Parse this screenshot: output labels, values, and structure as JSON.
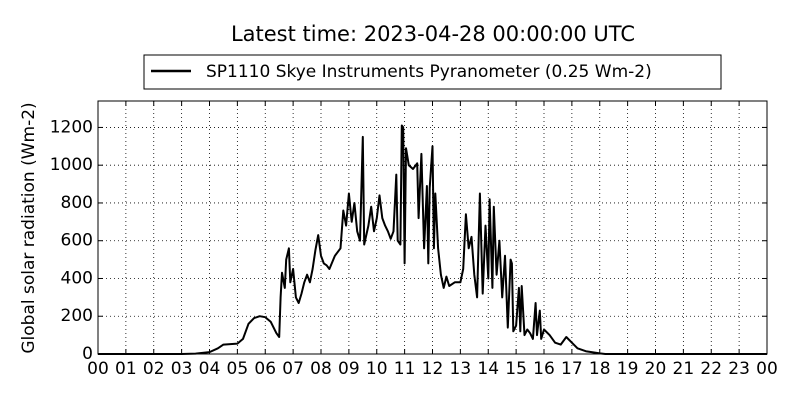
{
  "chart_data": {
    "type": "line",
    "title": "Latest time: 2023-04-28 00:00:00 UTC",
    "y_label": "Global solar radiation (Wm-2)",
    "x": [
      0,
      3,
      3.5,
      4,
      4.3,
      4.5,
      5,
      5.2,
      5.4,
      5.6,
      5.8,
      6.0,
      6.2,
      6.4,
      6.5,
      6.55,
      6.6,
      6.7,
      6.75,
      6.85,
      6.9,
      7.0,
      7.1,
      7.2,
      7.3,
      7.4,
      7.5,
      7.6,
      7.7,
      7.8,
      7.9,
      8.0,
      8.1,
      8.2,
      8.3,
      8.5,
      8.7,
      8.8,
      8.9,
      9.0,
      9.1,
      9.2,
      9.3,
      9.4,
      9.5,
      9.55,
      9.7,
      9.8,
      9.9,
      10.0,
      10.1,
      10.2,
      10.3,
      10.4,
      10.5,
      10.6,
      10.7,
      10.75,
      10.85,
      10.9,
      10.95,
      11.0,
      11.05,
      11.15,
      11.3,
      11.45,
      11.5,
      11.6,
      11.7,
      11.8,
      11.85,
      11.9,
      12.0,
      12.05,
      12.1,
      12.2,
      12.3,
      12.4,
      12.5,
      12.6,
      12.8,
      13.0,
      13.1,
      13.2,
      13.3,
      13.4,
      13.5,
      13.6,
      13.7,
      13.8,
      13.9,
      14.0,
      14.05,
      14.15,
      14.2,
      14.3,
      14.4,
      14.5,
      14.6,
      14.7,
      14.8,
      14.85,
      14.9,
      15.0,
      15.1,
      15.15,
      15.2,
      15.3,
      15.4,
      15.5,
      15.6,
      15.7,
      15.75,
      15.85,
      15.9,
      16.0,
      16.2,
      16.4,
      16.6,
      16.8,
      17.0,
      17.2,
      17.5,
      18.0,
      18.2,
      24
    ],
    "series": [
      {
        "name": "SP1110 Skye Instruments Pyranometer (0.25 Wm-2)",
        "color": "#000000",
        "values": [
          0,
          0,
          2,
          10,
          30,
          50,
          55,
          80,
          160,
          190,
          200,
          195,
          170,
          110,
          90,
          300,
          430,
          350,
          500,
          560,
          380,
          450,
          300,
          270,
          320,
          380,
          420,
          380,
          450,
          550,
          630,
          520,
          480,
          470,
          450,
          520,
          560,
          760,
          680,
          850,
          700,
          800,
          650,
          600,
          1150,
          580,
          680,
          780,
          650,
          720,
          840,
          720,
          680,
          650,
          610,
          650,
          950,
          600,
          580,
          1210,
          1200,
          480,
          1090,
          1000,
          980,
          1010,
          720,
          1060,
          560,
          890,
          480,
          880,
          1100,
          560,
          850,
          560,
          420,
          350,
          410,
          360,
          380,
          380,
          450,
          740,
          560,
          620,
          420,
          300,
          850,
          320,
          680,
          400,
          820,
          350,
          780,
          420,
          600,
          300,
          520,
          140,
          500,
          480,
          120,
          150,
          350,
          120,
          360,
          100,
          130,
          110,
          80,
          270,
          100,
          230,
          80,
          130,
          100,
          60,
          50,
          90,
          60,
          30,
          15,
          3,
          0,
          0
        ]
      }
    ],
    "xlim": [
      0,
      24
    ],
    "xticks": [
      {
        "value": 0,
        "label": "00"
      },
      {
        "value": 1,
        "label": "01"
      },
      {
        "value": 2,
        "label": "02"
      },
      {
        "value": 3,
        "label": "03"
      },
      {
        "value": 4,
        "label": "04"
      },
      {
        "value": 5,
        "label": "05"
      },
      {
        "value": 6,
        "label": "06"
      },
      {
        "value": 7,
        "label": "07"
      },
      {
        "value": 8,
        "label": "08"
      },
      {
        "value": 9,
        "label": "09"
      },
      {
        "value": 10,
        "label": "10"
      },
      {
        "value": 11,
        "label": "11"
      },
      {
        "value": 12,
        "label": "12"
      },
      {
        "value": 13,
        "label": "13"
      },
      {
        "value": 14,
        "label": "14"
      },
      {
        "value": 15,
        "label": "15"
      },
      {
        "value": 16,
        "label": "16"
      },
      {
        "value": 17,
        "label": "17"
      },
      {
        "value": 18,
        "label": "18"
      },
      {
        "value": 19,
        "label": "19"
      },
      {
        "value": 20,
        "label": "20"
      },
      {
        "value": 21,
        "label": "21"
      },
      {
        "value": 22,
        "label": "22"
      },
      {
        "value": 23,
        "label": "23"
      },
      {
        "value": 24,
        "label": "00"
      }
    ],
    "ylim": [
      0,
      1340
    ],
    "yticks": [
      0,
      200,
      400,
      600,
      800,
      1000,
      1200
    ],
    "grid": true,
    "legend": "top"
  }
}
